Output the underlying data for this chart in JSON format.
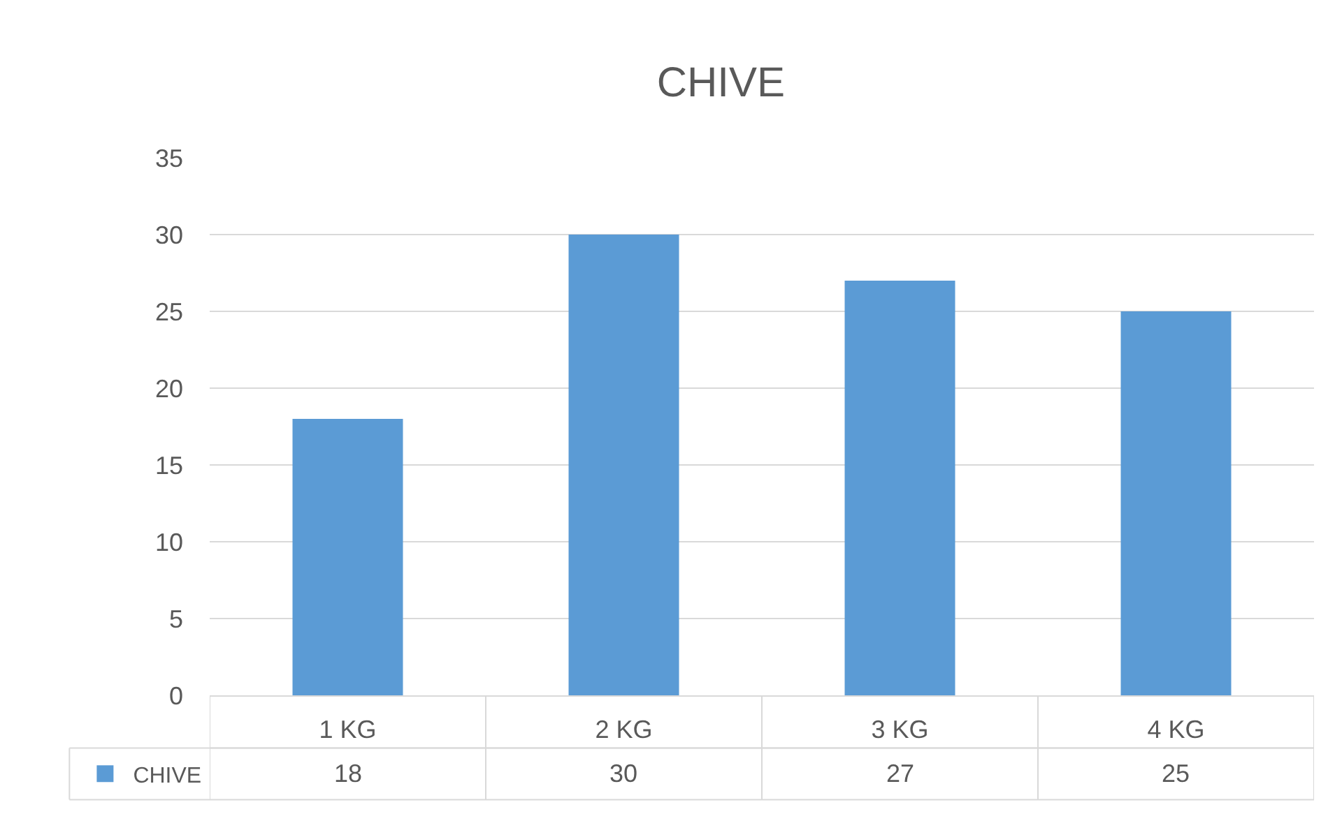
{
  "chart_data": {
    "type": "bar",
    "title": "CHIVE",
    "categories": [
      "1 KG",
      "2 KG",
      "3 KG",
      "4 KG"
    ],
    "series": [
      {
        "name": "CHIVE",
        "color": "#5b9bd5",
        "values": [
          18,
          30,
          27,
          25
        ]
      }
    ],
    "ylim": [
      0,
      35
    ],
    "yticks": [
      0,
      5,
      10,
      15,
      20,
      25,
      30,
      35
    ],
    "grid": "y",
    "legend": "bottom",
    "data_labels": true
  }
}
